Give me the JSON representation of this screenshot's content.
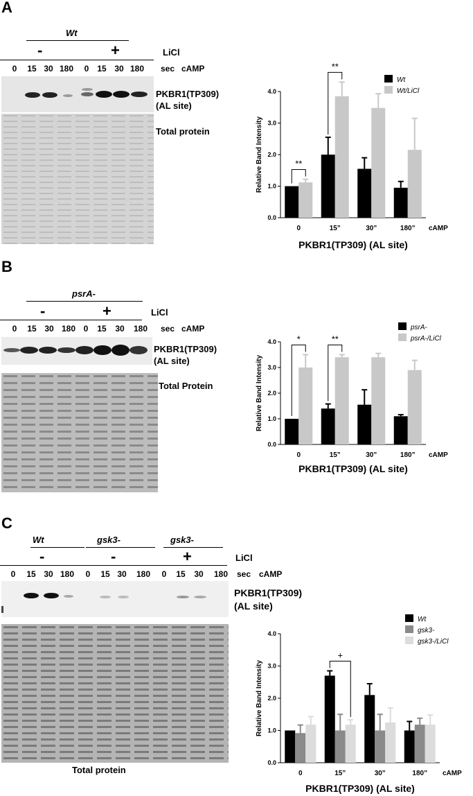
{
  "panels": [
    {
      "letter": "A",
      "strain": "Wt",
      "licl_label": "LiCl",
      "licl_minus": "-",
      "licl_plus": "+",
      "sec_label": "sec",
      "camp_label": "cAMP",
      "lanes": [
        "0",
        "15",
        "30",
        "180",
        "0",
        "15",
        "30",
        "180"
      ],
      "band_label_1": "PKBR1(TP309)",
      "band_label_2": "(AL site)",
      "total_label": "Total protein"
    },
    {
      "letter": "B",
      "strain": "psrA-",
      "licl_label": "LiCl",
      "licl_minus": "-",
      "licl_plus": "+",
      "sec_label": "sec",
      "camp_label": "cAMP",
      "lanes": [
        "0",
        "15",
        "30",
        "180",
        "0",
        "15",
        "30",
        "180"
      ],
      "band_label_1": "PKBR1(TP309)",
      "band_label_2": "(AL site)",
      "total_label": "Total Protein"
    },
    {
      "letter": "C",
      "strains": [
        "Wt",
        "gsk3-",
        "gsk3-"
      ],
      "licl_label": "LiCl",
      "licl_signs": [
        "-",
        "-",
        "+"
      ],
      "sec_label": "sec",
      "camp_label": "cAMP",
      "lanes": [
        "0",
        "15",
        "30",
        "180",
        "0",
        "15",
        "30",
        "180",
        "0",
        "15",
        "30",
        "180"
      ],
      "band_label_1": "PKBR1(TP309)",
      "band_label_2": "(AL site)",
      "total_label": "Total protein"
    }
  ],
  "chart_data": [
    {
      "type": "bar",
      "panel": "A",
      "title": "PKBR1(TP309) (AL site)",
      "xlabel": "PKBR1(TP309) (AL site)",
      "ylabel": "Relative Band Intensity",
      "x_unit": "cAMP",
      "categories": [
        "0",
        "15”",
        "30”",
        "180”"
      ],
      "ylim": [
        0,
        4.0
      ],
      "yticks": [
        "0.0",
        "1.0",
        "2.0",
        "3.0",
        "4.0"
      ],
      "series": [
        {
          "name": "Wt",
          "color": "#000000",
          "values": [
            1.0,
            2.0,
            1.55,
            0.95
          ],
          "errors": [
            0.0,
            0.55,
            0.35,
            0.2
          ]
        },
        {
          "name": "Wt/LiCl",
          "color": "#c8c8c8",
          "values": [
            1.12,
            3.85,
            3.48,
            2.15
          ],
          "errors": [
            0.1,
            0.45,
            0.45,
            1.0
          ]
        }
      ],
      "significance": [
        {
          "category": "0",
          "mark": "**"
        },
        {
          "category": "15”",
          "mark": "**"
        }
      ]
    },
    {
      "type": "bar",
      "panel": "B",
      "xlabel": "PKBR1(TP309) (AL site)",
      "ylabel": "Relative Band Intensity",
      "x_unit": "cAMP",
      "categories": [
        "0",
        "15”",
        "30”",
        "180”"
      ],
      "ylim": [
        0,
        4.0
      ],
      "yticks": [
        "0.0",
        "1.0",
        "2.0",
        "3.0",
        "4.0"
      ],
      "series": [
        {
          "name": "psrA-",
          "color": "#000000",
          "values": [
            1.0,
            1.4,
            1.55,
            1.1
          ],
          "errors": [
            0.0,
            0.18,
            0.58,
            0.06
          ]
        },
        {
          "name": "psrA-/LiCl",
          "color": "#c8c8c8",
          "values": [
            3.0,
            3.4,
            3.4,
            2.9
          ],
          "errors": [
            0.5,
            0.1,
            0.15,
            0.38
          ]
        }
      ],
      "significance": [
        {
          "category": "0",
          "mark": "*"
        },
        {
          "category": "15”",
          "mark": "**"
        }
      ]
    },
    {
      "type": "bar",
      "panel": "C",
      "xlabel": "PKBR1(TP309) (AL site)",
      "ylabel": "Relative Band Intensity",
      "x_unit": "cAMP",
      "categories": [
        "0",
        "15”",
        "30”",
        "180”"
      ],
      "ylim": [
        0,
        4.0
      ],
      "yticks": [
        "0.0",
        "1.0",
        "2.0",
        "3.0",
        "4.0"
      ],
      "series": [
        {
          "name": "Wt",
          "color": "#000000",
          "values": [
            1.0,
            2.7,
            2.1,
            1.0
          ],
          "errors": [
            0.0,
            0.15,
            0.35,
            0.28
          ]
        },
        {
          "name": "gsk3-",
          "color": "#8a8a8a",
          "values": [
            0.92,
            1.0,
            1.0,
            1.18
          ],
          "errors": [
            0.25,
            0.5,
            0.5,
            0.2
          ]
        },
        {
          "name": "gsk3-/LiCl",
          "color": "#dcdcdc",
          "values": [
            1.18,
            1.18,
            1.25,
            1.18
          ],
          "errors": [
            0.25,
            0.15,
            0.45,
            0.3
          ]
        }
      ],
      "significance": [
        {
          "category": "15”",
          "mark": "+"
        }
      ]
    }
  ]
}
